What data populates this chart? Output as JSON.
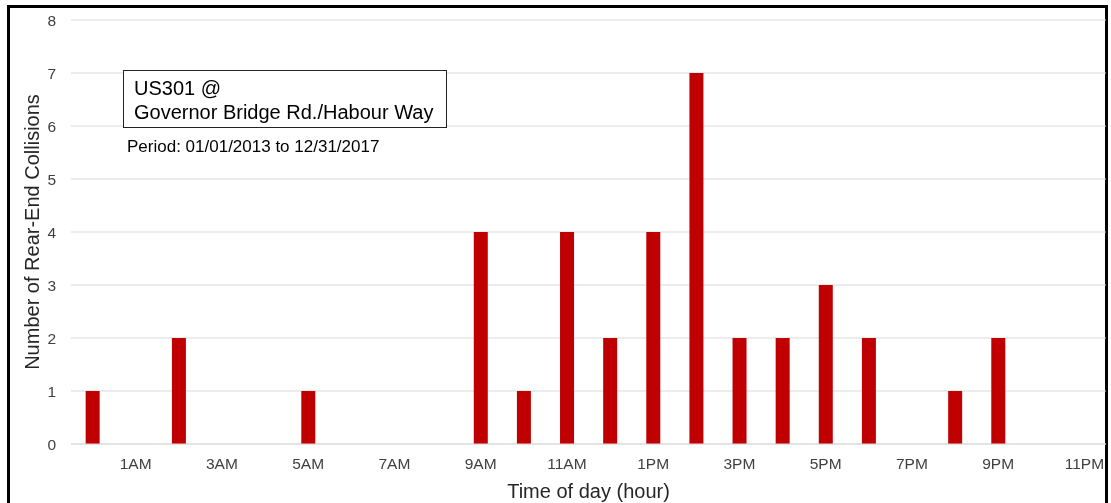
{
  "chart_data": {
    "type": "bar",
    "categories": [
      null,
      "1AM",
      null,
      "3AM",
      null,
      "5AM",
      null,
      "7AM",
      null,
      "9AM",
      null,
      "11AM",
      null,
      "1PM",
      null,
      "3PM",
      null,
      "5PM",
      null,
      "7PM",
      null,
      "9PM",
      null,
      "11PM"
    ],
    "values": [
      1,
      0,
      2,
      0,
      0,
      1,
      0,
      0,
      0,
      4,
      1,
      4,
      2,
      4,
      7,
      2,
      2,
      3,
      2,
      0,
      1,
      2,
      0,
      0
    ],
    "color": "#c00000",
    "xlabel": "Time of day (hour)",
    "ylabel": "Number of Rear-End Collisions",
    "ylim": [
      0,
      8
    ],
    "yticks": [
      0,
      1,
      2,
      3,
      4,
      5,
      6,
      7,
      8
    ],
    "grid": "y",
    "annotations": [
      "US301 @\nGovernor Bridge Rd./Habour Way",
      "Period: 01/01/2013 to 12/31/2017"
    ]
  }
}
